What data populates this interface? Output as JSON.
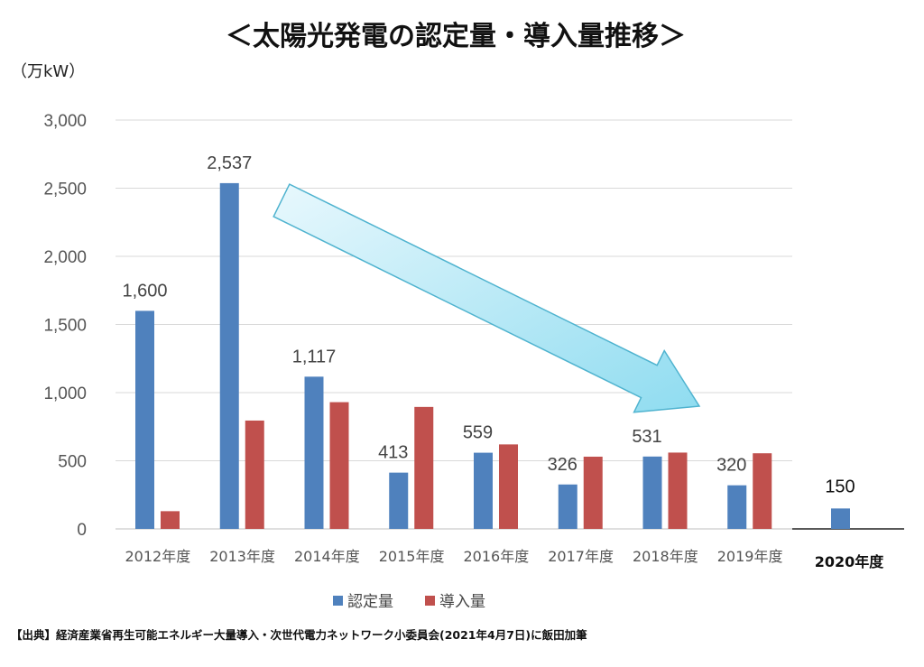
{
  "chart_data": {
    "type": "bar",
    "title": "＜太陽光発電の認定量・導入量推移＞",
    "unit": "（万kW）",
    "categories": [
      "2012年度",
      "2013年度",
      "2014年度",
      "2015年度",
      "2016年度",
      "2017年度",
      "2018年度",
      "2019年度"
    ],
    "series": [
      {
        "name": "認定量",
        "color": "#4f81bd",
        "values": [
          1600,
          2537,
          1117,
          413,
          559,
          326,
          531,
          320
        ],
        "labels": [
          "1,600",
          "2,537",
          "1,117",
          "413",
          "559",
          "326",
          "531",
          "320"
        ]
      },
      {
        "name": "導入量",
        "color": "#c0504d",
        "values": [
          130,
          795,
          930,
          895,
          620,
          530,
          560,
          555
        ]
      }
    ],
    "ylim": [
      0,
      3000
    ],
    "yticks": [
      {
        "value": 0,
        "label": "0"
      },
      {
        "value": 500,
        "label": "500"
      },
      {
        "value": 1000,
        "label": "1,000"
      },
      {
        "value": 1500,
        "label": "1,500"
      },
      {
        "value": 2000,
        "label": "2,000"
      },
      {
        "value": 2500,
        "label": "2,500"
      },
      {
        "value": 3000,
        "label": "3,000"
      }
    ],
    "grid": true,
    "legend": "bottom-center",
    "extra": {
      "category": "2020年度",
      "value": 150,
      "label": "150",
      "color": "#4f81bd"
    },
    "annotation": {
      "type": "arrow",
      "description": "downward trend",
      "color": "#8fdcf0"
    }
  },
  "source": "【出典】経済産業省再生可能エネルギー大量導入・次世代電力ネットワーク小委員会(2021年4月7日)に飯田加筆"
}
